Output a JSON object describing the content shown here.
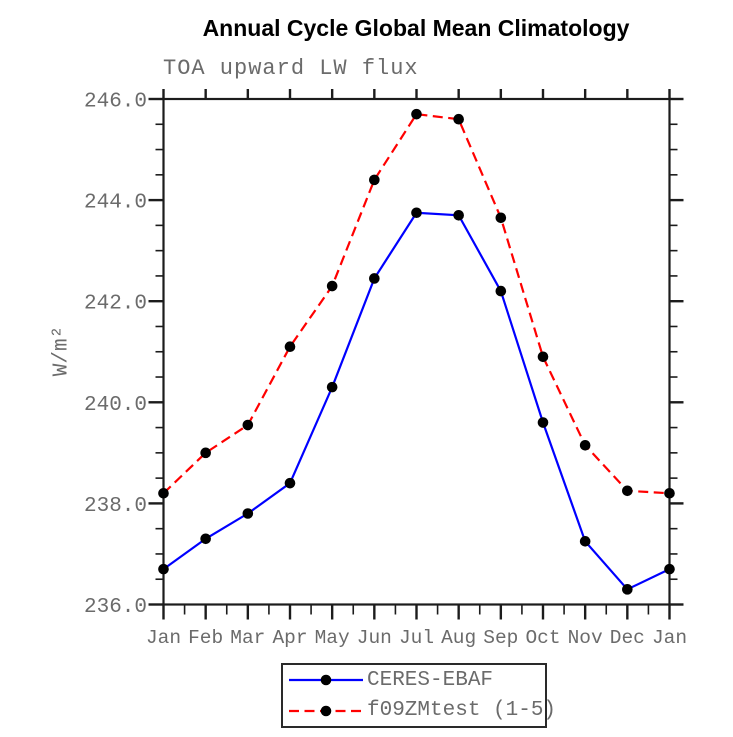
{
  "title": "Annual Cycle Global Mean Climatology",
  "subtitle": "TOA upward LW flux",
  "chart_data": {
    "type": "line",
    "title": "Annual Cycle Global Mean Climatology",
    "subtitle": "TOA upward LW flux",
    "xlabel": "",
    "ylabel": "W/m²",
    "categories": [
      "Jan",
      "Feb",
      "Mar",
      "Apr",
      "May",
      "Jun",
      "Jul",
      "Aug",
      "Sep",
      "Oct",
      "Nov",
      "Dec",
      "Jan"
    ],
    "ylim": [
      236.0,
      246.0
    ],
    "ytick_major_interval": 2.0,
    "ytick_minor_interval": 0.5,
    "ytick_labels": [
      "246.0",
      "244.0",
      "242.0",
      "240.0",
      "238.0",
      "236.0"
    ],
    "grid": false,
    "legend_position": "bottom-center",
    "series": [
      {
        "name": "CERES-EBAF",
        "color": "#0000ff",
        "style": "solid",
        "marker": "filled-circle",
        "marker_color": "#000000",
        "values": [
          236.7,
          237.3,
          237.8,
          238.4,
          240.3,
          242.45,
          243.75,
          243.7,
          242.2,
          239.6,
          237.25,
          236.3,
          236.7
        ]
      },
      {
        "name": "f09ZMtest (1-5)",
        "color": "#ff0000",
        "style": "dashed",
        "marker": "filled-circle",
        "marker_color": "#000000",
        "values": [
          238.2,
          239.0,
          239.55,
          241.1,
          242.3,
          244.4,
          245.7,
          245.6,
          243.65,
          240.9,
          239.15,
          238.25,
          238.2
        ]
      }
    ]
  },
  "colors": {
    "axis": "#1c1c1c",
    "tick_text": "#6b6b6b",
    "title_text": "#000000",
    "background": "#ffffff"
  }
}
